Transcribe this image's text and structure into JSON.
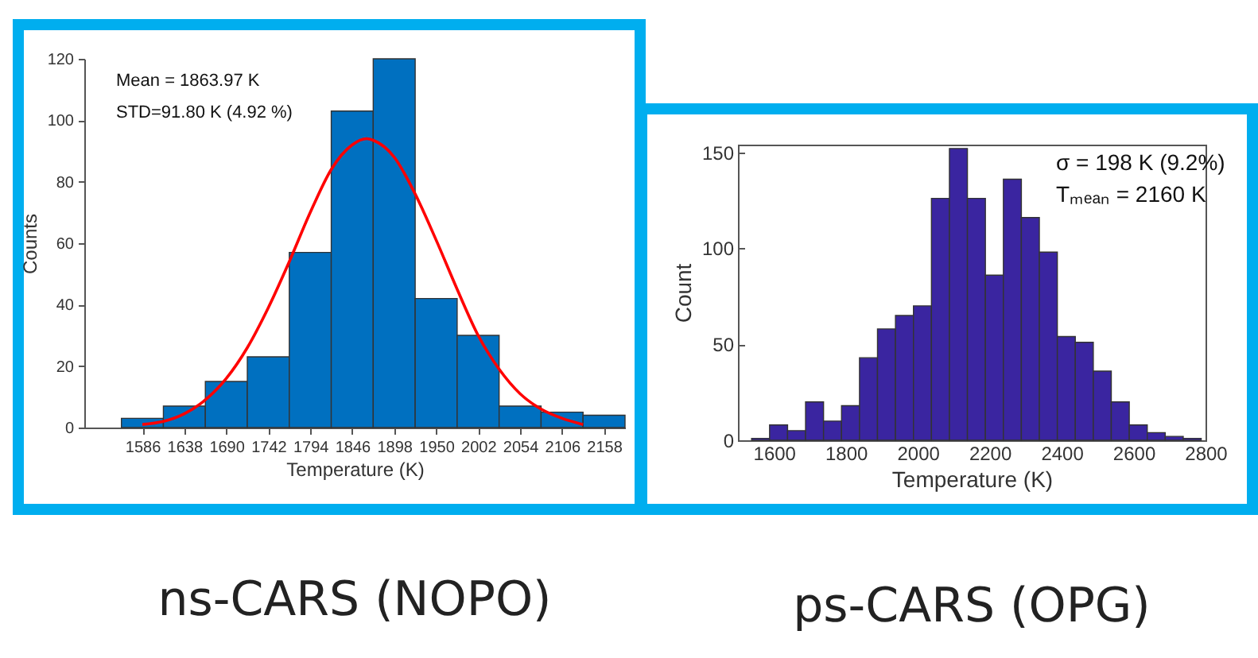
{
  "chart_data": [
    {
      "type": "histogram",
      "title": "ns-CARS (NOPO)",
      "xlabel": "Temperature (K)",
      "ylabel": "Counts",
      "annotations": [
        "Mean = 1863.97 K",
        "STD=91.80 K (4.92 %)"
      ],
      "bins": [
        1560,
        1612,
        1664,
        1716,
        1768,
        1820,
        1872,
        1924,
        1976,
        2028,
        2080,
        2132,
        2184
      ],
      "series": [
        {
          "color": "#0070c0",
          "values": [
            3,
            7,
            15,
            23,
            57,
            103,
            120,
            42,
            30,
            7,
            5,
            4
          ]
        },
        {
          "type": "line",
          "color": "#ff0000",
          "x": [
            1586,
            1612,
            1638,
            1664,
            1690,
            1716,
            1742,
            1768,
            1794,
            1820,
            1846,
            1864,
            1872,
            1898,
            1924,
            1950,
            1976,
            2002,
            2028,
            2054,
            2080,
            2106,
            2132
          ],
          "values": [
            1,
            2,
            4.5,
            9,
            16,
            26,
            39,
            54,
            70,
            84,
            92,
            94,
            93.5,
            88,
            76,
            61,
            45,
            30,
            19,
            11,
            6,
            3,
            1
          ]
        }
      ],
      "xlim": [
        1514,
        2184
      ],
      "xticks": [
        1586,
        1638,
        1690,
        1742,
        1794,
        1846,
        1898,
        1950,
        2002,
        2054,
        2106,
        2158
      ],
      "ylim": [
        0,
        120
      ],
      "yticks": [
        0,
        20,
        40,
        60,
        80,
        100,
        120
      ],
      "grid": false
    },
    {
      "type": "histogram",
      "title": "ps-CARS (OPG)",
      "xlabel": "Temperature (K)",
      "ylabel": "Count",
      "annotations": [
        "σ  = 198 K (9.2%)",
        "Tₘₑₐₙ = 2160 K"
      ],
      "bins": [
        1538,
        1588,
        1638,
        1688,
        1738,
        1788,
        1838,
        1888,
        1938,
        1988,
        2038,
        2088,
        2138,
        2188,
        2238,
        2288,
        2338,
        2388,
        2438,
        2488,
        2538,
        2588,
        2638,
        2688,
        2738,
        2788
      ],
      "series": [
        {
          "color": "#3a25a0",
          "values": [
            1,
            8,
            5,
            20,
            10,
            18,
            43,
            58,
            65,
            70,
            126,
            152,
            126,
            86,
            136,
            116,
            98,
            54,
            51,
            36,
            20,
            8,
            4,
            2,
            1
          ]
        }
      ],
      "xlim": [
        1500,
        2800
      ],
      "xticks": [
        1600,
        1800,
        2000,
        2200,
        2400,
        2600,
        2800
      ],
      "ylim": [
        0,
        154
      ],
      "yticks": [
        0,
        50,
        100,
        150
      ],
      "grid": false
    }
  ]
}
